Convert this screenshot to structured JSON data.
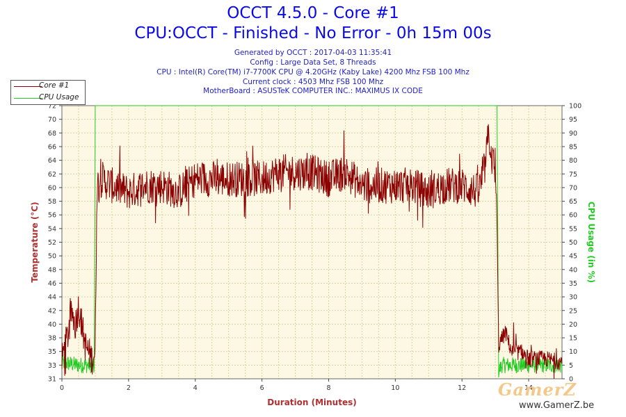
{
  "header": {
    "title": "OCCT 4.5.0 - Core #1",
    "subtitle": "CPU:OCCT - Finished - No Error - 0h 15m 00s",
    "info_lines": [
      "Generated by OCCT : 2017-04-03 11:35:41",
      "Config : Large Data Set, 8 Threads",
      "CPU : Intel(R) Core(TM) i7-7700K CPU @ 4.20GHz (Kaby Lake) 4200 Mhz FSB 100 Mhz",
      "Current clock : 4503 Mhz FSB 100 Mhz",
      "MotherBoard : ASUSTeK COMPUTER INC.: MAXIMUS IX CODE"
    ]
  },
  "watermark": {
    "logo": "GamerZ",
    "url": "www.GamerZ.be"
  },
  "colors": {
    "temperature": "#8b0000",
    "cpu_usage": "#22cc22",
    "plot_bg": "#fdf8e4",
    "title": "#0a0ae6",
    "axis_left": "#b03030",
    "axis_right": "#22cc22"
  },
  "chart_data": {
    "type": "line",
    "xlabel": "Duration (Minutes)",
    "ylabel": "Temperature (°C)",
    "y2label": "CPU Usage (in %)",
    "xlim": [
      0,
      15
    ],
    "ylim": [
      31,
      72
    ],
    "y2lim": [
      0,
      100
    ],
    "x_ticks": [
      "0",
      "2",
      "4",
      "6",
      "8",
      "10",
      "12",
      "14"
    ],
    "y_ticks": [
      "31",
      "33",
      "35",
      "38",
      "40",
      "42",
      "44",
      "46",
      "48",
      "50",
      "52",
      "54",
      "56",
      "58",
      "60",
      "62",
      "64",
      "66",
      "68",
      "70",
      "72"
    ],
    "y2_ticks": [
      "0",
      "5",
      "10",
      "15",
      "20",
      "25",
      "30",
      "35",
      "40",
      "45",
      "50",
      "55",
      "60",
      "65",
      "70",
      "75",
      "80",
      "85",
      "90",
      "95",
      "100"
    ],
    "legend_position": "top-left",
    "series": [
      {
        "name": "Core #1",
        "axis": "left",
        "x": [
          0,
          0.2,
          0.3,
          0.4,
          0.5,
          0.7,
          0.9,
          1.0,
          1.05,
          1.2,
          1.5,
          2.0,
          2.5,
          3.0,
          3.5,
          4.0,
          4.5,
          5.0,
          5.5,
          6.0,
          6.5,
          7.0,
          7.5,
          8.0,
          8.5,
          9.0,
          9.5,
          10.0,
          10.5,
          11.0,
          11.5,
          12.0,
          12.5,
          12.7,
          12.8,
          12.9,
          13.0,
          13.05,
          13.1,
          13.3,
          13.5,
          13.8,
          14.0,
          14.5,
          15.0
        ],
        "y": [
          34,
          38,
          41,
          39,
          42,
          36,
          34,
          35,
          60,
          61,
          60,
          59,
          60,
          60,
          59,
          61,
          61,
          61,
          61,
          61,
          62,
          62,
          62,
          61,
          62,
          60,
          60,
          60,
          60,
          59,
          60,
          60,
          59,
          63,
          68,
          64,
          62,
          54,
          36,
          38,
          35,
          35,
          34,
          34,
          33.5
        ]
      },
      {
        "name": "CPU Usage",
        "axis": "right",
        "x": [
          0,
          0.5,
          0.9,
          0.97,
          1.0,
          5.0,
          10.0,
          13.05,
          13.1,
          13.2,
          14.0,
          15.0
        ],
        "y": [
          6,
          5,
          5,
          4,
          100,
          100,
          100,
          100,
          3,
          5,
          5,
          5
        ]
      }
    ]
  }
}
